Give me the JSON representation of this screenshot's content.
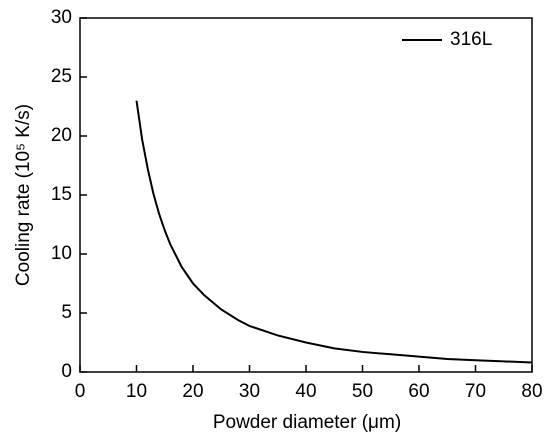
{
  "chart_data": {
    "type": "line",
    "xlabel": "Powder diameter (μm)",
    "ylabel": "Cooling rate (10⁵ K/s)",
    "x": [
      10,
      11,
      12,
      13,
      14,
      15,
      16,
      18,
      20,
      22,
      25,
      28,
      30,
      35,
      40,
      45,
      50,
      55,
      60,
      65,
      70,
      75,
      80
    ],
    "series": [
      {
        "name": "316L",
        "color": "#000000",
        "values": [
          23,
          19.7,
          17.2,
          15.1,
          13.4,
          12.0,
          10.8,
          8.9,
          7.5,
          6.5,
          5.3,
          4.4,
          3.9,
          3.1,
          2.5,
          2.0,
          1.7,
          1.5,
          1.3,
          1.1,
          1.0,
          0.9,
          0.8
        ]
      }
    ],
    "xlim": [
      0,
      80
    ],
    "xticks": [
      0,
      10,
      20,
      30,
      40,
      50,
      60,
      70,
      80
    ],
    "ylim": [
      0,
      30
    ],
    "yticks": [
      0,
      5,
      10,
      15,
      20,
      25,
      30
    ],
    "legend": "upper right"
  }
}
